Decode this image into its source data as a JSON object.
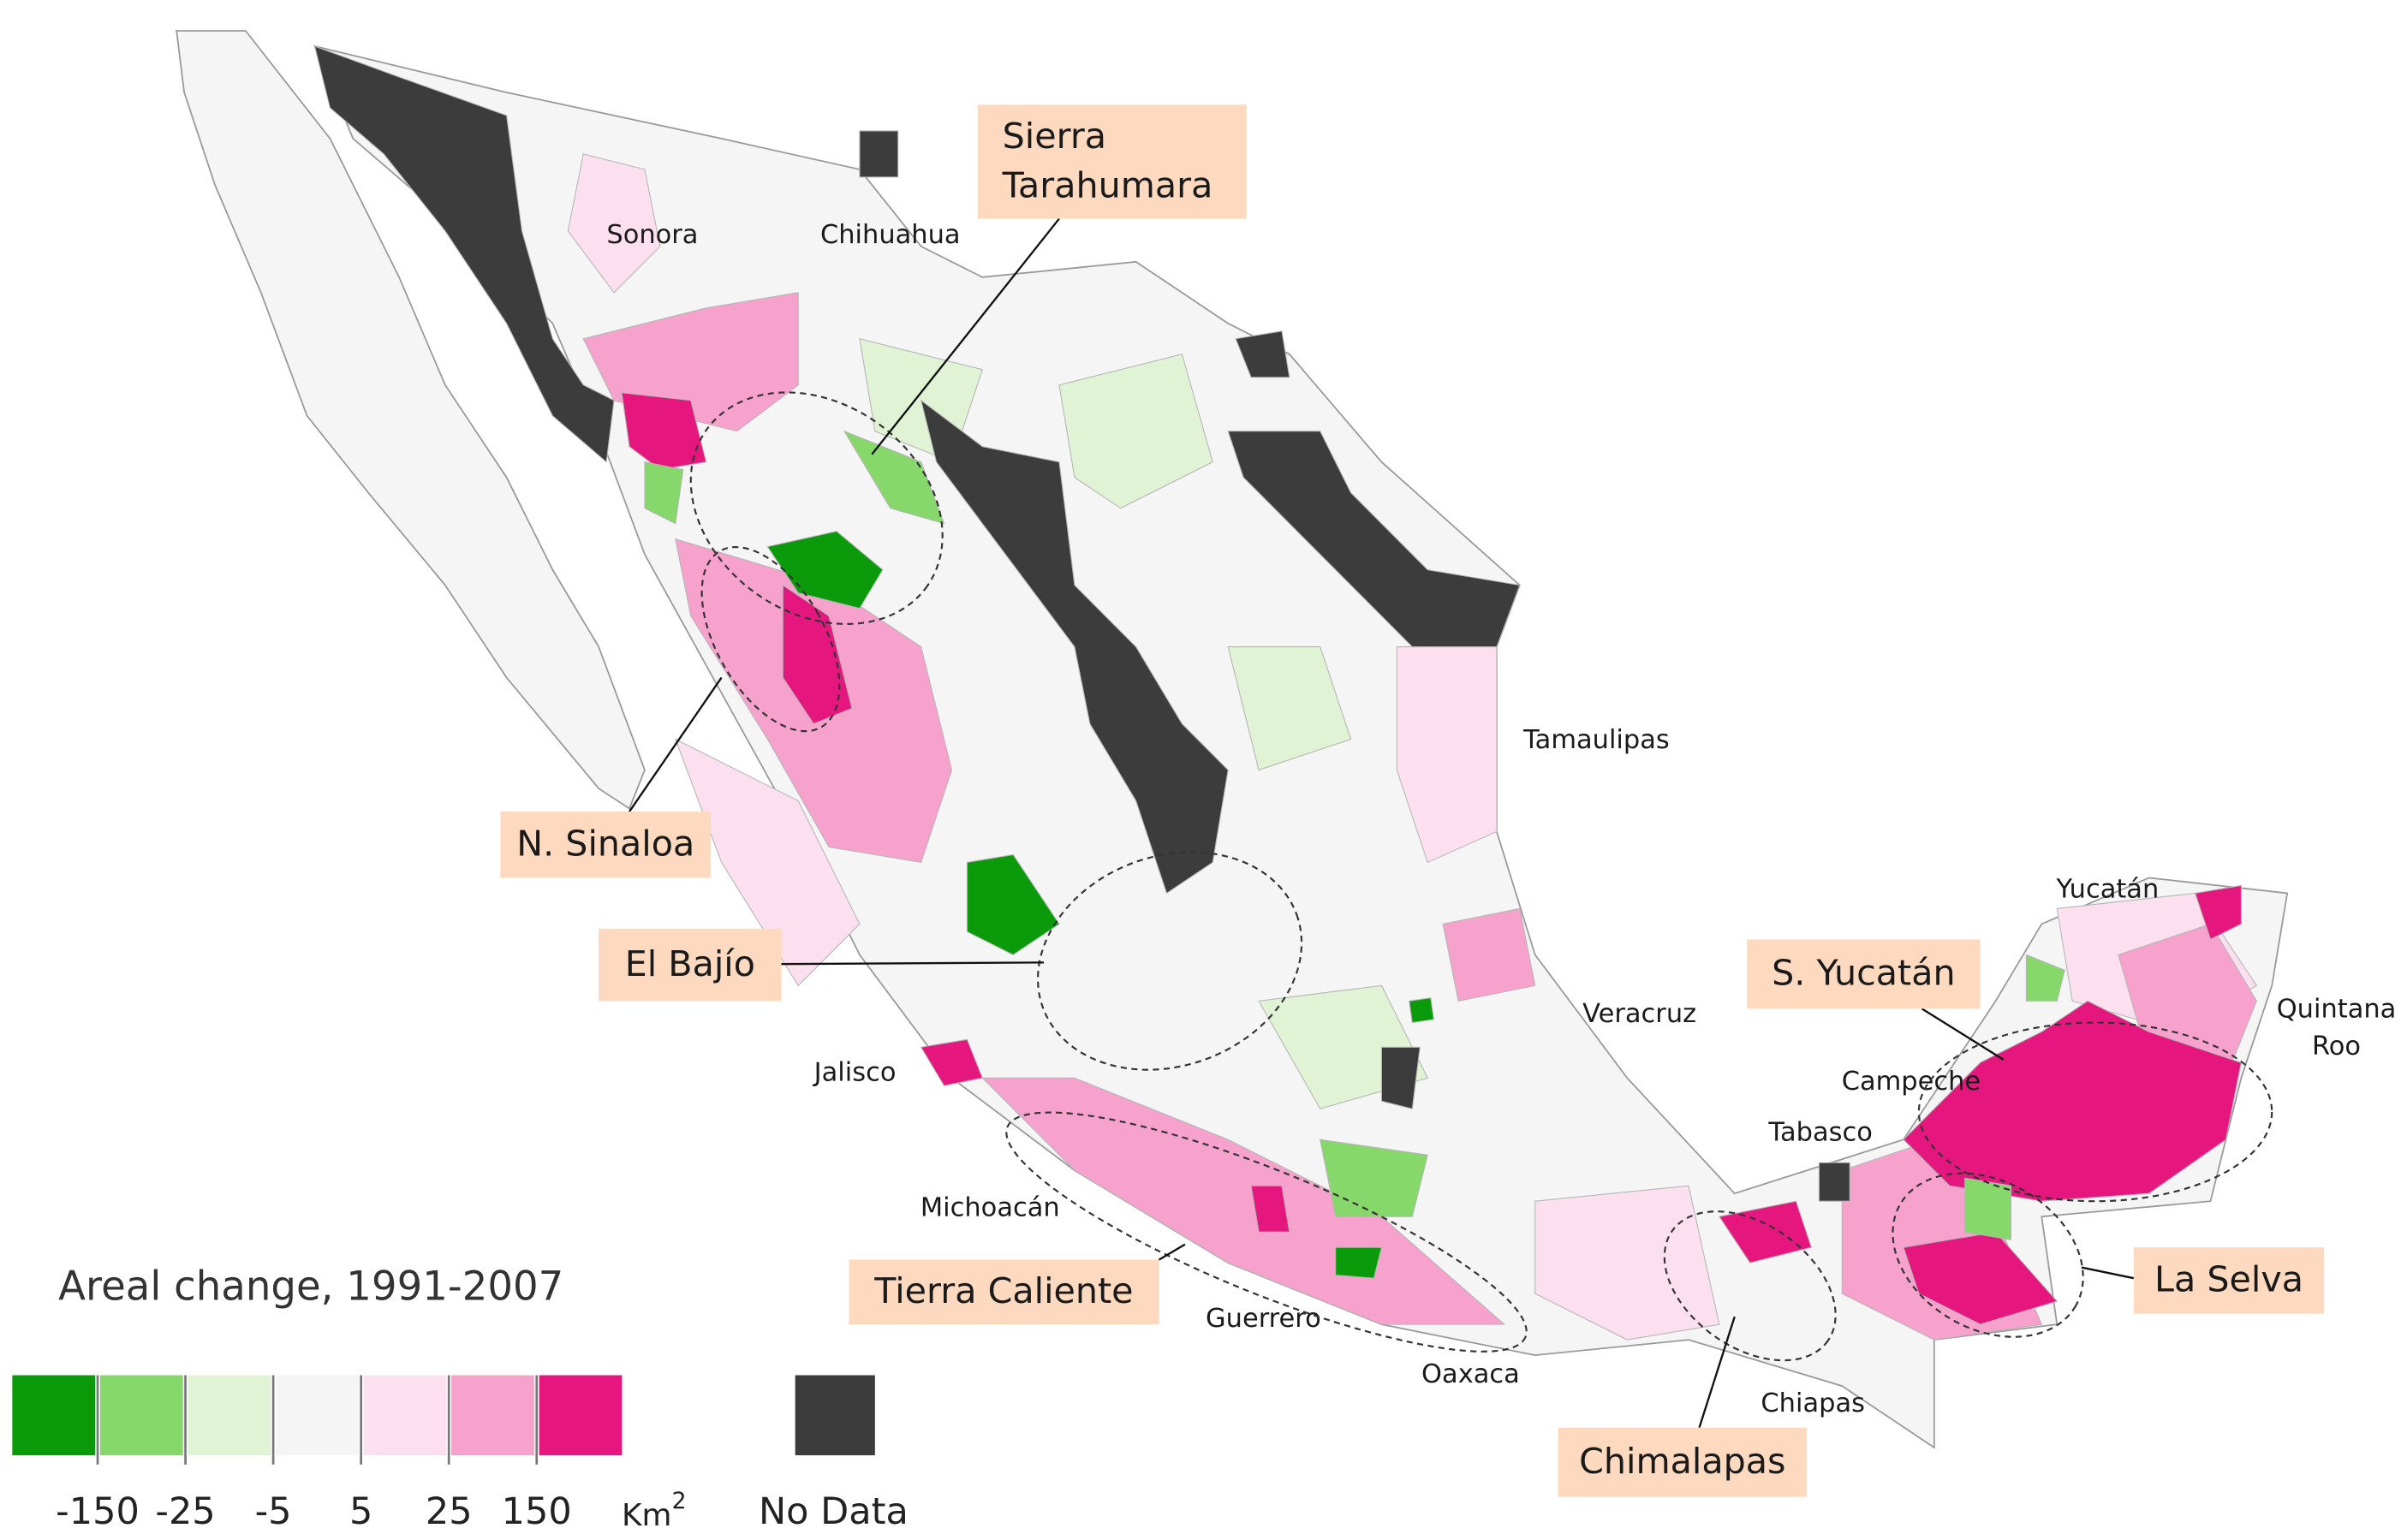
{
  "title": "Areal change, 1991-2007",
  "legend": {
    "bins": [
      {
        "color": "#0a9a0a"
      },
      {
        "color": "#86d86b"
      },
      {
        "color": "#e0f4d5"
      },
      {
        "color": "#f5f5f5"
      },
      {
        "color": "#fde0ef"
      },
      {
        "color": "#f7a2cd"
      },
      {
        "color": "#e6167f"
      }
    ],
    "thresholds": [
      -150,
      -25,
      -5,
      5,
      25,
      150
    ],
    "unit": "Km",
    "unit_exponent": "2",
    "no_data": {
      "label": "No Data",
      "color": "#3c3c3c"
    }
  },
  "states": [
    {
      "label": "Sonora"
    },
    {
      "label": "Chihuahua"
    },
    {
      "label": "Tamaulipas"
    },
    {
      "label": "Veracruz"
    },
    {
      "label": "Jalisco"
    },
    {
      "label": "Michoacán"
    },
    {
      "label": "Guerrero"
    },
    {
      "label": "Oaxaca"
    },
    {
      "label": "Chiapas"
    },
    {
      "label": "Tabasco"
    },
    {
      "label": "Campeche"
    },
    {
      "label": "Yucatán"
    },
    {
      "label": "Quintana",
      "label_line2": "Roo"
    }
  ],
  "regions": [
    {
      "label": "Sierra",
      "label_line2": "Tarahumara"
    },
    {
      "label": "N. Sinaloa"
    },
    {
      "label": "El Bajío"
    },
    {
      "label": "S. Yucatán"
    },
    {
      "label": "Tierra Caliente"
    },
    {
      "label": "Chimalapas"
    },
    {
      "label": "La Selva"
    }
  ]
}
